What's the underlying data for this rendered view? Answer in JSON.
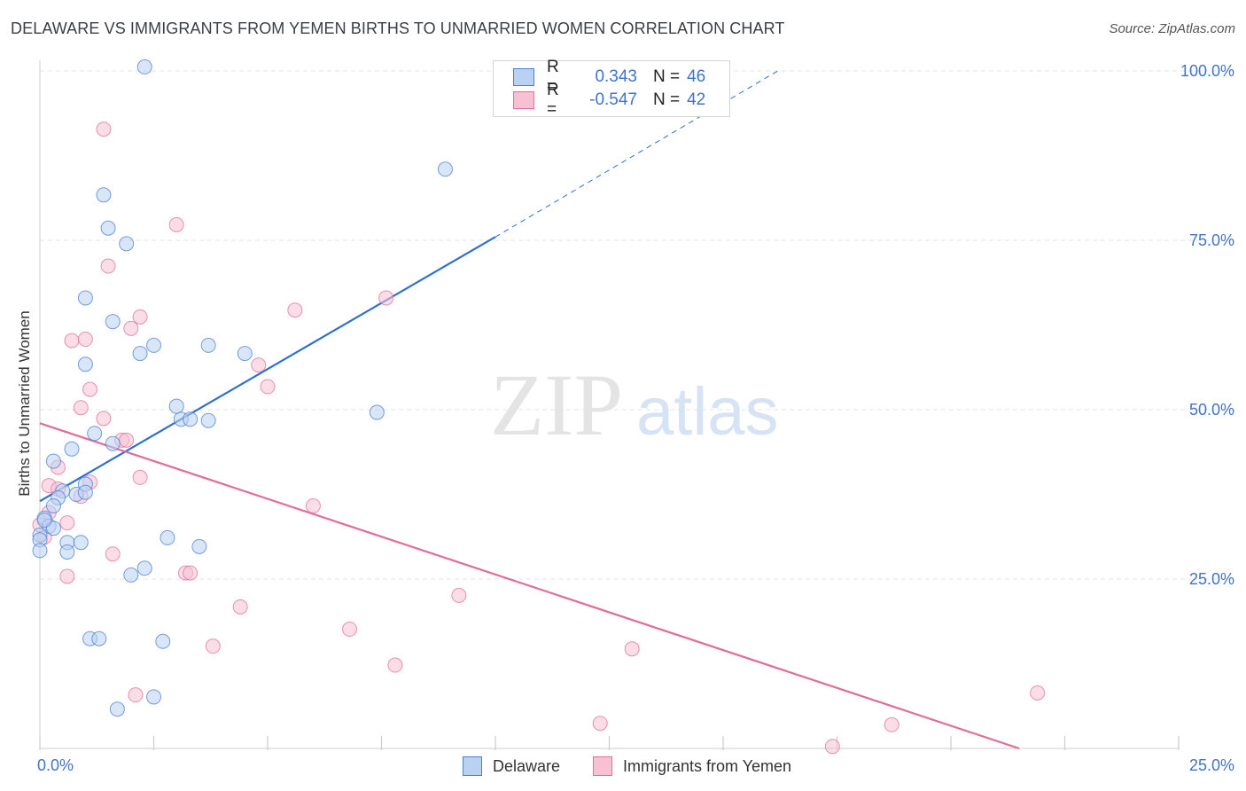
{
  "title": "DELAWARE VS IMMIGRANTS FROM YEMEN BIRTHS TO UNMARRIED WOMEN CORRELATION CHART",
  "source": "Source: ZipAtlas.com",
  "watermark": {
    "zip": "ZIP",
    "atlas": "atlas"
  },
  "colors": {
    "blue": "#4a7fd4",
    "blue_fill": "#b9d2f3",
    "blue_line": "#2e6fd0",
    "pink": "#e26f9a",
    "pink_fill": "#f7c1d3",
    "pink_line": "#e06c98",
    "tick_text": "#3f74c6",
    "grid": "#dfe3e8"
  },
  "legend": {
    "rows": [
      {
        "r_label": "R =",
        "r_value": "0.343",
        "n_label": "N =",
        "n_value": "46"
      },
      {
        "r_label": "R =",
        "r_value": "-0.547",
        "n_label": "N =",
        "n_value": "42"
      }
    ]
  },
  "chart_data": {
    "type": "scatter",
    "title": "DELAWARE VS IMMIGRANTS FROM YEMEN BIRTHS TO UNMARRIED WOMEN CORRELATION CHART",
    "xlabel": "",
    "ylabel": "Births to Unmarried Women",
    "xlim": [
      0,
      25
    ],
    "ylim": [
      0,
      100
    ],
    "x_tick_labels": [
      {
        "value": 0,
        "label": "0.0%"
      },
      {
        "value": 25,
        "label": "25.0%"
      }
    ],
    "y_tick_labels": [
      {
        "value": 100,
        "label": "100.0%"
      },
      {
        "value": 75,
        "label": "75.0%"
      },
      {
        "value": 50,
        "label": "50.0%"
      },
      {
        "value": 25,
        "label": "25.0%"
      }
    ],
    "series": [
      {
        "name": "Delaware",
        "r": 0.343,
        "n": 46,
        "trendline": {
          "x0": 0,
          "y0": 36.5,
          "x1": 10.0,
          "y1": 75.5,
          "dashed_to_x": 16.2,
          "dashed_to_y": 100.0
        },
        "points": [
          [
            2.3,
            100.6
          ],
          [
            8.9,
            85.5
          ],
          [
            1.4,
            81.7
          ],
          [
            1.5,
            76.8
          ],
          [
            1.9,
            74.5
          ],
          [
            1.0,
            66.5
          ],
          [
            1.6,
            63.0
          ],
          [
            2.5,
            59.5
          ],
          [
            3.7,
            59.5
          ],
          [
            2.2,
            58.3
          ],
          [
            4.5,
            58.3
          ],
          [
            1.0,
            56.7
          ],
          [
            3.0,
            50.5
          ],
          [
            3.1,
            48.6
          ],
          [
            3.3,
            48.6
          ],
          [
            3.7,
            48.4
          ],
          [
            7.4,
            49.6
          ],
          [
            1.2,
            46.5
          ],
          [
            1.6,
            45.0
          ],
          [
            0.7,
            44.2
          ],
          [
            0.3,
            42.4
          ],
          [
            1.0,
            39.0
          ],
          [
            0.5,
            38.0
          ],
          [
            0.4,
            37.0
          ],
          [
            0.8,
            37.5
          ],
          [
            1.0,
            37.8
          ],
          [
            0.3,
            35.8
          ],
          [
            0.1,
            34.0
          ],
          [
            0.2,
            32.8
          ],
          [
            0.3,
            32.5
          ],
          [
            0.0,
            31.5
          ],
          [
            0.0,
            30.8
          ],
          [
            0.6,
            30.4
          ],
          [
            0.9,
            30.4
          ],
          [
            2.8,
            31.1
          ],
          [
            3.5,
            29.8
          ],
          [
            0.6,
            29.0
          ],
          [
            2.3,
            26.6
          ],
          [
            2.0,
            25.6
          ],
          [
            1.1,
            16.2
          ],
          [
            1.3,
            16.2
          ],
          [
            2.7,
            15.8
          ],
          [
            1.7,
            5.8
          ],
          [
            2.5,
            7.6
          ],
          [
            0.1,
            33.7
          ],
          [
            0.0,
            29.2
          ]
        ]
      },
      {
        "name": "Immigrants from Yemen",
        "r": -0.547,
        "n": 42,
        "trendline": {
          "x0": 0,
          "y0": 48.0,
          "x1": 21.5,
          "y1": 0.0
        },
        "points": [
          [
            1.4,
            91.4
          ],
          [
            3.0,
            77.3
          ],
          [
            1.5,
            71.2
          ],
          [
            2.2,
            63.7
          ],
          [
            2.0,
            62.0
          ],
          [
            0.7,
            60.2
          ],
          [
            1.0,
            60.4
          ],
          [
            5.6,
            64.7
          ],
          [
            7.6,
            66.5
          ],
          [
            4.8,
            56.6
          ],
          [
            5.0,
            53.4
          ],
          [
            1.1,
            53.0
          ],
          [
            0.9,
            50.3
          ],
          [
            1.4,
            48.7
          ],
          [
            1.8,
            45.5
          ],
          [
            1.9,
            45.5
          ],
          [
            0.4,
            41.5
          ],
          [
            2.2,
            40.0
          ],
          [
            1.1,
            39.3
          ],
          [
            0.2,
            38.8
          ],
          [
            0.4,
            38.3
          ],
          [
            0.9,
            37.2
          ],
          [
            6.0,
            35.8
          ],
          [
            0.6,
            33.3
          ],
          [
            0.1,
            31.2
          ],
          [
            1.6,
            28.7
          ],
          [
            3.2,
            25.9
          ],
          [
            3.3,
            25.9
          ],
          [
            0.6,
            25.4
          ],
          [
            9.2,
            22.6
          ],
          [
            4.4,
            20.9
          ],
          [
            6.8,
            17.6
          ],
          [
            3.8,
            15.1
          ],
          [
            13.0,
            14.7
          ],
          [
            7.8,
            12.3
          ],
          [
            2.1,
            7.9
          ],
          [
            12.3,
            3.7
          ],
          [
            18.7,
            3.5
          ],
          [
            21.9,
            8.2
          ],
          [
            17.4,
            0.3
          ],
          [
            0.0,
            33.0
          ],
          [
            0.2,
            34.8
          ]
        ]
      }
    ],
    "legend": [
      "Delaware",
      "Immigrants from Yemen"
    ]
  }
}
